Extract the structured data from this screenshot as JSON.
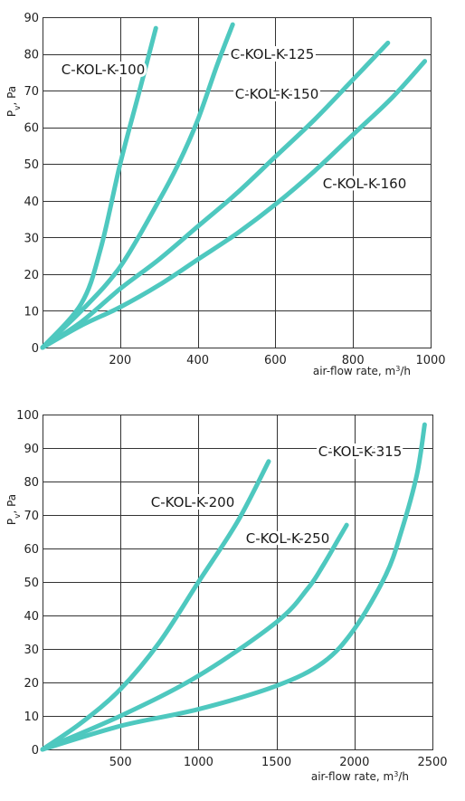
{
  "chart_data": [
    {
      "type": "line",
      "xlabel": "air-flow rate, m³/h",
      "ylabel": "Pv, Pa",
      "xlim": [
        0,
        1000
      ],
      "ylim": [
        0,
        90
      ],
      "xticks": [
        200,
        400,
        600,
        800,
        1000
      ],
      "yticks": [
        0,
        10,
        20,
        30,
        40,
        50,
        60,
        70,
        80,
        90
      ],
      "grid": true,
      "color": "#4ec8bf",
      "series": [
        {
          "name": "C-KOL-K-100",
          "x": [
            0,
            100,
            150,
            200,
            250,
            292
          ],
          "y": [
            0,
            12,
            27,
            50,
            70,
            87
          ]
        },
        {
          "name": "C-KOL-K-125",
          "x": [
            0,
            100,
            200,
            300,
            350,
            400,
            450,
            490
          ],
          "y": [
            0,
            10,
            22,
            40,
            50,
            62,
            77,
            88
          ]
        },
        {
          "name": "C-KOL-K-150",
          "x": [
            0,
            100,
            200,
            300,
            400,
            500,
            600,
            700,
            800,
            890
          ],
          "y": [
            0,
            7,
            16,
            24,
            33,
            42,
            52,
            62,
            73,
            83
          ]
        },
        {
          "name": "C-KOL-K-160",
          "x": [
            0,
            100,
            200,
            300,
            400,
            500,
            600,
            700,
            800,
            900,
            985
          ],
          "y": [
            0,
            6,
            11,
            17,
            24,
            31,
            39,
            48,
            58,
            68,
            78
          ]
        }
      ]
    },
    {
      "type": "line",
      "xlabel": "air-flow rate, m³/h",
      "ylabel": "Pv, Pa",
      "xlim": [
        0,
        2500
      ],
      "ylim": [
        0,
        100
      ],
      "xticks": [
        500,
        1000,
        1500,
        2000,
        2500
      ],
      "yticks": [
        0,
        10,
        20,
        30,
        40,
        50,
        60,
        70,
        80,
        90,
        100
      ],
      "grid": true,
      "color": "#4ec8bf",
      "series": [
        {
          "name": "C-KOL-K-200",
          "x": [
            0,
            250,
            500,
            750,
            1000,
            1250,
            1450
          ],
          "y": [
            0,
            8,
            18,
            32,
            50,
            68,
            86
          ]
        },
        {
          "name": "C-KOL-K-250",
          "x": [
            0,
            500,
            1000,
            1500,
            1700,
            1800,
            1900,
            1950
          ],
          "y": [
            0,
            10,
            22,
            38,
            48,
            55,
            63,
            67
          ]
        },
        {
          "name": "C-KOL-K-315",
          "x": [
            0,
            500,
            1000,
            1500,
            1800,
            2000,
            2200,
            2300,
            2400,
            2450
          ],
          "y": [
            0,
            7,
            12,
            19,
            26,
            36,
            52,
            65,
            82,
            97
          ]
        }
      ]
    }
  ],
  "charts": {
    "top": {
      "ylabel_main": "P",
      "ylabel_sub": "v",
      "ylabel_rest": ", Pa",
      "xlabel_main": "air-flow rate, m",
      "xlabel_sup": "3",
      "xlabel_rest": "/h",
      "tick_zero": "0"
    },
    "bottom": {
      "ylabel_main": "P",
      "ylabel_sub": "v",
      "ylabel_rest": ", Pa",
      "xlabel_main": "air-flow rate, m",
      "xlabel_sup": "3",
      "xlabel_rest": "/h",
      "tick_zero": "0"
    }
  }
}
